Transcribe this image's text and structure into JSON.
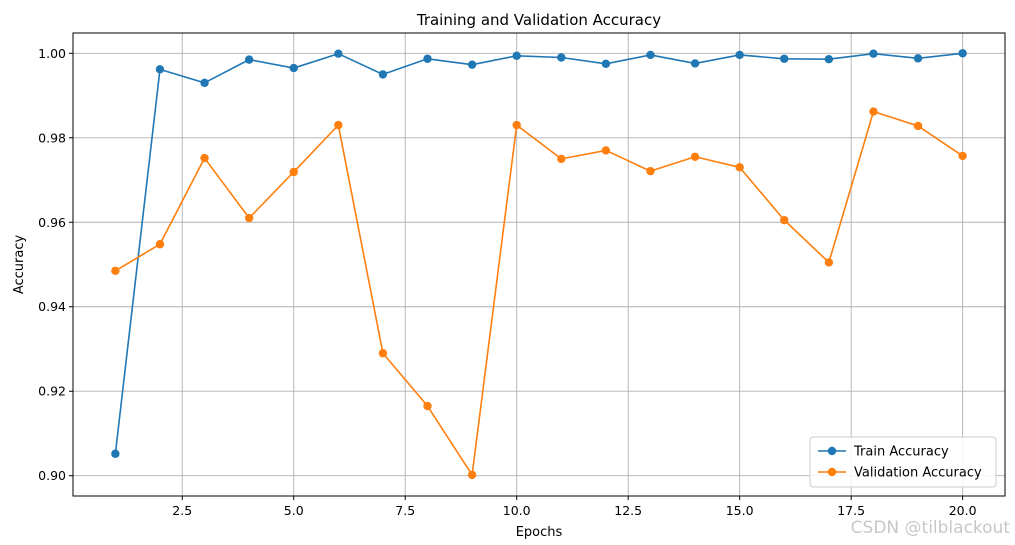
{
  "chart_data": {
    "type": "line",
    "title": "Training and Validation Accuracy",
    "xlabel": "Epochs",
    "ylabel": "Accuracy",
    "x": [
      1,
      2,
      3,
      4,
      5,
      6,
      7,
      8,
      9,
      10,
      11,
      12,
      13,
      14,
      15,
      16,
      17,
      18,
      19,
      20
    ],
    "series": [
      {
        "name": "Train Accuracy",
        "color": "#1f77b4",
        "values": [
          0.9052,
          0.9962,
          0.993,
          0.9985,
          0.9965,
          0.9999,
          0.995,
          0.9987,
          0.9973,
          0.9994,
          0.999,
          0.9975,
          0.9996,
          0.9976,
          0.9996,
          0.9987,
          0.9986,
          0.9999,
          0.9988,
          1.0
        ]
      },
      {
        "name": "Validation Accuracy",
        "color": "#ff7f0e",
        "values": [
          0.9485,
          0.9548,
          0.9752,
          0.961,
          0.9719,
          0.983,
          0.929,
          0.9165,
          0.9002,
          0.983,
          0.975,
          0.977,
          0.9721,
          0.9755,
          0.973,
          0.9605,
          0.9505,
          0.9862,
          0.9828,
          0.9757
        ]
      }
    ],
    "xticks": [
      2.5,
      5.0,
      7.5,
      10.0,
      12.5,
      15.0,
      17.5,
      20.0
    ],
    "xtick_labels": [
      "2.5",
      "5.0",
      "7.5",
      "10.0",
      "12.5",
      "15.0",
      "17.5",
      "20.0"
    ],
    "yticks": [
      0.9,
      0.92,
      0.94,
      0.96,
      0.98,
      1.0
    ],
    "ytick_labels": [
      "0.90",
      "0.92",
      "0.94",
      "0.96",
      "0.98",
      "1.00"
    ],
    "xlim": [
      0.05,
      20.95
    ],
    "ylim": [
      0.8952,
      1.0048
    ],
    "grid": true,
    "legend": "lower-right"
  },
  "watermark": "CSDN @tilblackout"
}
